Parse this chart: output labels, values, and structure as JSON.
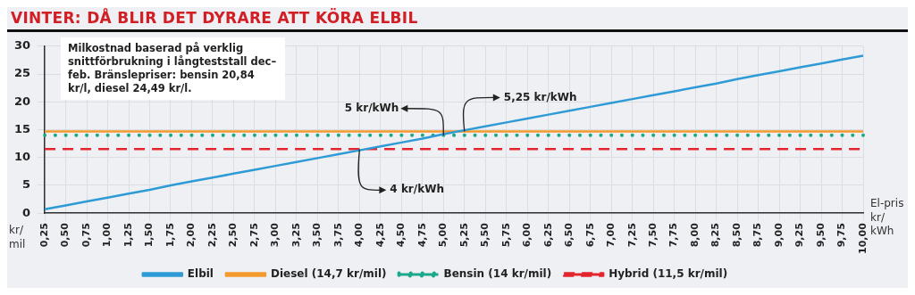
{
  "chart_data": {
    "type": "line",
    "title": "VINTER: DÅ BLIR DET DYRARE ATT KÖRA ELBIL",
    "xlabel": "El-pris kr/ kWh",
    "ylabel": "kr/ mil",
    "categories": [
      "0,25",
      "0,50",
      "0,75",
      "1,00",
      "1,25",
      "1,50",
      "1,75",
      "2,00",
      "2,25",
      "2,50",
      "2,75",
      "3,00",
      "3,25",
      "3,50",
      "3,75",
      "4,00",
      "4,25",
      "4,50",
      "4,75",
      "5,00",
      "5,25",
      "5,50",
      "5,75",
      "6,00",
      "6,25",
      "6,50",
      "6,75",
      "7,00",
      "7,25",
      "7,50",
      "7,75",
      "8,00",
      "8,25",
      "8,50",
      "8,75",
      "9,00",
      "9,25",
      "9,50",
      "9,75",
      "10,00"
    ],
    "series": [
      {
        "name": "Elbil",
        "color": "#2f9bd6",
        "line_style": "solid",
        "values": [
          0.7,
          1.4,
          2.1,
          2.8,
          3.5,
          4.2,
          5.0,
          5.7,
          6.4,
          7.1,
          7.8,
          8.5,
          9.2,
          9.9,
          10.6,
          11.3,
          12.0,
          12.7,
          13.4,
          14.2,
          14.9,
          15.6,
          16.3,
          17.0,
          17.7,
          18.4,
          19.1,
          19.8,
          20.5,
          21.2,
          21.9,
          22.6,
          23.3,
          24.1,
          24.8,
          25.5,
          26.2,
          26.9,
          27.6,
          28.3
        ]
      },
      {
        "name": "Diesel (14,7 kr/mil)",
        "color": "#f39a2e",
        "line_style": "solid",
        "values": [
          14.7,
          14.7,
          14.7,
          14.7,
          14.7,
          14.7,
          14.7,
          14.7,
          14.7,
          14.7,
          14.7,
          14.7,
          14.7,
          14.7,
          14.7,
          14.7,
          14.7,
          14.7,
          14.7,
          14.7,
          14.7,
          14.7,
          14.7,
          14.7,
          14.7,
          14.7,
          14.7,
          14.7,
          14.7,
          14.7,
          14.7,
          14.7,
          14.7,
          14.7,
          14.7,
          14.7,
          14.7,
          14.7,
          14.7,
          14.7
        ]
      },
      {
        "name": "Bensin (14 kr/mil)",
        "color": "#1aa98a",
        "line_style": "dotted",
        "values": [
          14,
          14,
          14,
          14,
          14,
          14,
          14,
          14,
          14,
          14,
          14,
          14,
          14,
          14,
          14,
          14,
          14,
          14,
          14,
          14,
          14,
          14,
          14,
          14,
          14,
          14,
          14,
          14,
          14,
          14,
          14,
          14,
          14,
          14,
          14,
          14,
          14,
          14,
          14,
          14
        ]
      },
      {
        "name": "Hybrid (11,5 kr/mil)",
        "color": "#e3262e",
        "line_style": "dashed",
        "values": [
          11.5,
          11.5,
          11.5,
          11.5,
          11.5,
          11.5,
          11.5,
          11.5,
          11.5,
          11.5,
          11.5,
          11.5,
          11.5,
          11.5,
          11.5,
          11.5,
          11.5,
          11.5,
          11.5,
          11.5,
          11.5,
          11.5,
          11.5,
          11.5,
          11.5,
          11.5,
          11.5,
          11.5,
          11.5,
          11.5,
          11.5,
          11.5,
          11.5,
          11.5,
          11.5,
          11.5,
          11.5,
          11.5,
          11.5,
          11.5
        ]
      }
    ],
    "ylim": [
      0,
      30
    ],
    "yticks": [
      0,
      5,
      10,
      15,
      20,
      25,
      30
    ],
    "grid": true,
    "legend": "bottom",
    "marker": "none",
    "annotations": [
      "Milkostnad baserad på verklig snittförbrukning i långteststall dec–feb. Bränslepriser: bensin 20,84 kr/l, diesel 24,49 kr/l.",
      {
        "text": "5 kr/kWh",
        "x": "5,00",
        "y": 14
      },
      {
        "text": "5,25 kr/kWh",
        "x": "5,25",
        "y": 14.7
      },
      {
        "text": "4 kr/kWh",
        "x": "4,00",
        "y": 11.5
      }
    ]
  }
}
